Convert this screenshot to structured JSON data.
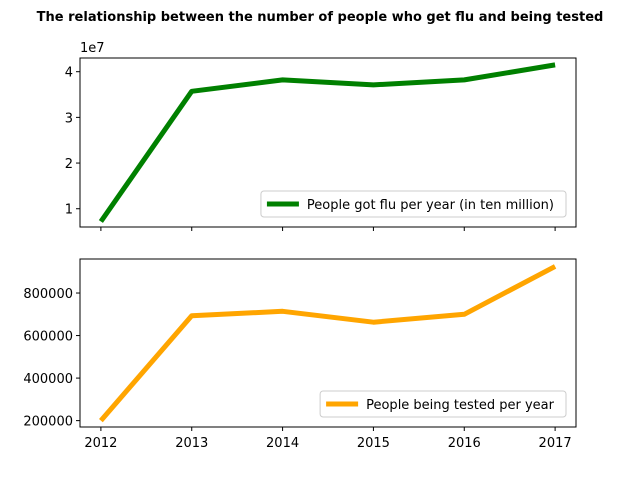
{
  "chart_data": {
    "title": "The relationship between the number of people who get flu and being tested",
    "type": "line",
    "x": [
      2012,
      2013,
      2014,
      2015,
      2016,
      2017
    ],
    "xticks": [
      "2012",
      "2013",
      "2014",
      "2015",
      "2016",
      "2017"
    ],
    "subplots": [
      {
        "type": "line",
        "series": [
          {
            "name": "People got flu per year (in ten million)",
            "color": "#008000",
            "values": [
              7200000,
              35700000,
              38200000,
              37100000,
              38200000,
              41500000
            ]
          }
        ],
        "ylim": [
          6000000,
          43000000
        ],
        "yticks": [
          10000000,
          20000000,
          30000000,
          40000000
        ],
        "ytick_labels": [
          "1",
          "2",
          "3",
          "4"
        ],
        "offset_text": "1e7",
        "legend_placement": "lower-right",
        "grid": false
      },
      {
        "type": "line",
        "series": [
          {
            "name": "People being tested per year",
            "color": "#ffa500",
            "values": [
              200000,
              693000,
              714000,
              663000,
              700000,
              925000
            ]
          }
        ],
        "ylim": [
          170000,
          960000
        ],
        "yticks": [
          200000,
          400000,
          600000,
          800000
        ],
        "ytick_labels": [
          "200000",
          "400000",
          "600000",
          "800000"
        ],
        "legend_placement": "lower-right",
        "grid": false
      }
    ]
  }
}
